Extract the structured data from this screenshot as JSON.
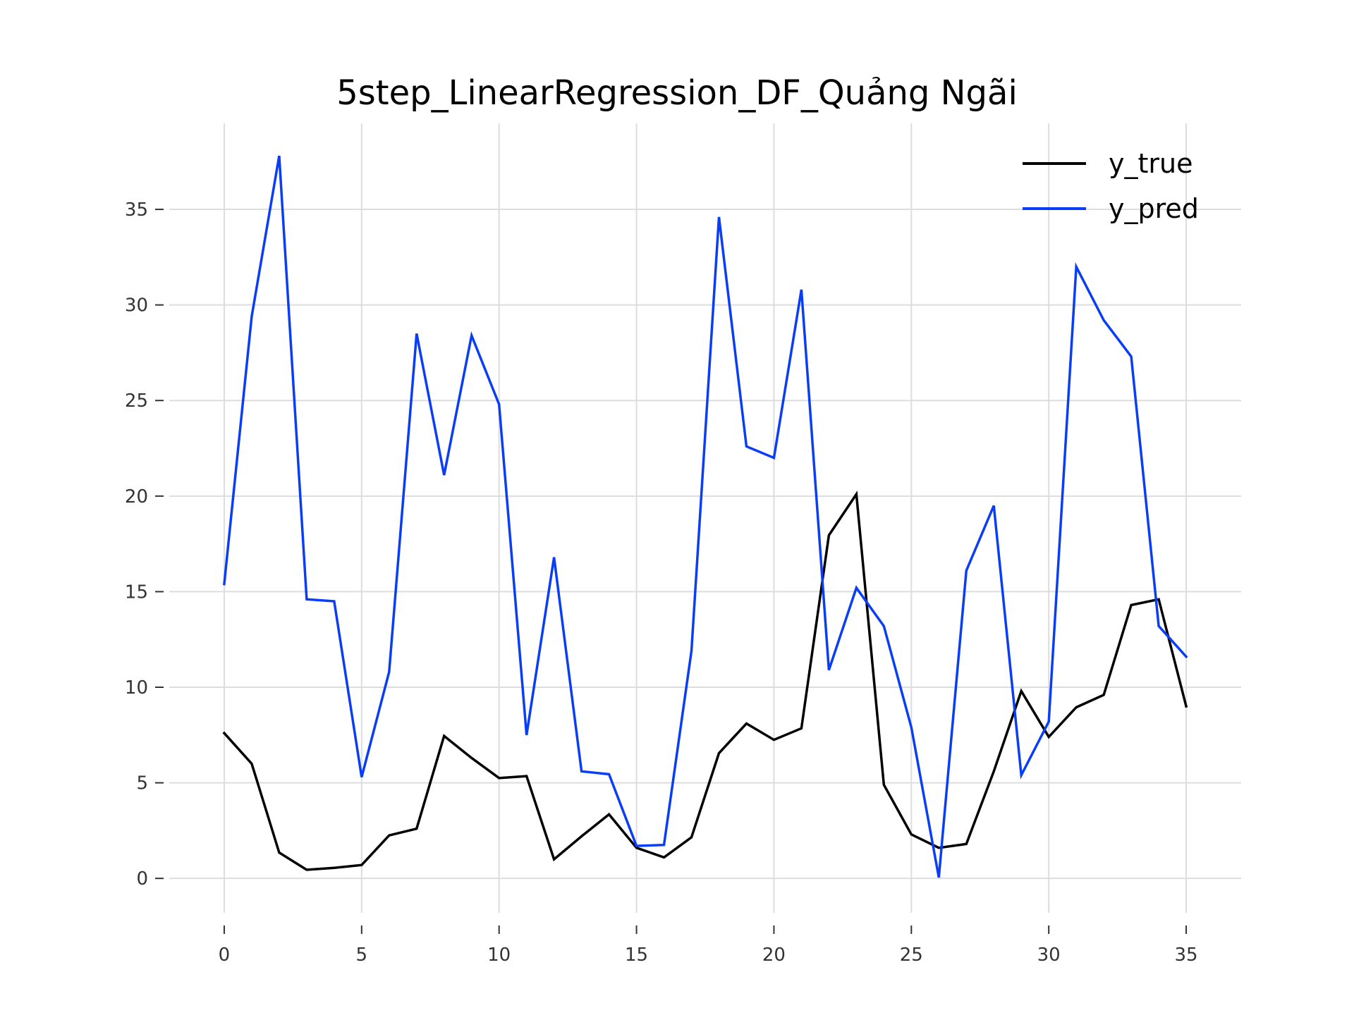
{
  "chart_data": {
    "type": "line",
    "title": "5step_LinearRegression_DF_Quảng Ngãi",
    "xlabel": "",
    "ylabel": "",
    "xlim": [
      -2,
      37
    ],
    "ylim": [
      -1.8,
      39.5
    ],
    "xticks": [
      0,
      5,
      10,
      15,
      20,
      25,
      30,
      35
    ],
    "yticks": [
      0,
      5,
      10,
      15,
      20,
      25,
      30,
      35
    ],
    "grid": true,
    "legend": "top-right",
    "x": [
      0,
      1,
      2,
      3,
      4,
      5,
      6,
      7,
      8,
      9,
      10,
      11,
      12,
      13,
      14,
      15,
      16,
      17,
      18,
      19,
      20,
      21,
      22,
      23,
      24,
      25,
      26,
      27,
      28,
      29,
      30,
      31,
      32,
      33,
      34,
      35
    ],
    "series": [
      {
        "name": "y_true",
        "color": "#000000",
        "values": [
          7.6,
          6.0,
          1.35,
          0.45,
          0.55,
          0.7,
          2.25,
          2.6,
          7.45,
          6.3,
          5.25,
          5.35,
          1.0,
          2.2,
          3.35,
          1.6,
          1.1,
          2.15,
          6.55,
          8.1,
          7.25,
          7.85,
          17.95,
          20.1,
          4.9,
          2.3,
          1.6,
          1.8,
          5.6,
          9.8,
          7.4,
          8.95,
          9.6,
          14.3,
          14.6,
          9.0
        ]
      },
      {
        "name": "y_pred",
        "color": "#0a3ef6",
        "values": [
          15.4,
          29.4,
          37.8,
          14.6,
          14.5,
          5.3,
          10.8,
          28.5,
          21.1,
          28.4,
          24.8,
          7.5,
          16.8,
          5.6,
          5.45,
          1.7,
          1.75,
          11.9,
          34.6,
          22.6,
          22.0,
          30.8,
          10.9,
          15.2,
          13.2,
          7.9,
          0.05,
          16.1,
          19.5,
          5.4,
          8.2,
          32.0,
          29.2,
          27.3,
          13.2,
          11.6
        ]
      }
    ]
  }
}
